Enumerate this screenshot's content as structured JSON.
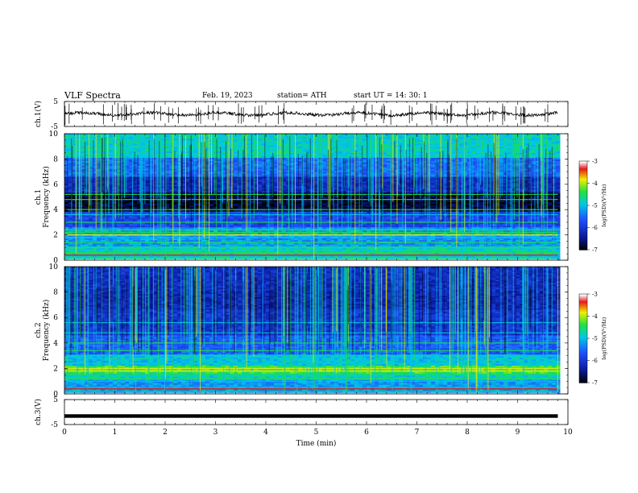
{
  "header": {
    "title": "VLF  Spectra",
    "date": "Feb. 19, 2023",
    "station": "station= ATH",
    "start": "start  UT  =    14: 30: 1"
  },
  "chart_data": [
    {
      "type": "line",
      "name": "ch1-waveform",
      "ylabel": "ch.1(V)",
      "yticks": [
        "5",
        "-5"
      ],
      "ylim": [
        -5,
        5
      ],
      "xlim": [
        0,
        10
      ],
      "baseline": 0
    },
    {
      "type": "heatmap",
      "name": "ch1-spectrogram",
      "ylabel_top": "ch.1",
      "ylabel": "Frequency (kHz)",
      "yticks": [
        "0",
        "2",
        "4",
        "6",
        "8",
        "10"
      ],
      "ylim": [
        0,
        10
      ],
      "xlim": [
        0,
        9.8
      ],
      "colorbar": {
        "label": "log(PSD)(V²/Hz)",
        "ticks": [
          "-3",
          "-4",
          "-5",
          "-6",
          "-7"
        ],
        "range": [
          -7,
          -3
        ]
      }
    },
    {
      "type": "heatmap",
      "name": "ch2-spectrogram",
      "ylabel_top": "ch.2",
      "ylabel": "Frequency (kHz)",
      "yticks": [
        "0",
        "2",
        "4",
        "6",
        "8",
        "10"
      ],
      "ylim": [
        0,
        10
      ],
      "xlim": [
        0,
        9.8
      ],
      "colorbar": {
        "label": "log(PSD)(V²/Hz)",
        "ticks": [
          "-3",
          "-4",
          "-5",
          "-6",
          "-7"
        ],
        "range": [
          -7,
          -3
        ]
      }
    },
    {
      "type": "line",
      "name": "ch3-waveform",
      "ylabel": "ch.3(V)",
      "yticks": [
        "5",
        "-5"
      ],
      "ylim": [
        -5,
        5
      ],
      "xlim": [
        0,
        10
      ],
      "baseline": -1.6
    }
  ],
  "xaxis": {
    "label": "Time  (min)",
    "ticks": [
      "0",
      "1",
      "2",
      "3",
      "4",
      "5",
      "6",
      "7",
      "8",
      "9",
      "10"
    ]
  },
  "colors": {
    "deep": "#000000",
    "low": "#0a1a9a",
    "mid": "#1f52ff",
    "cyan": "#00c8e6",
    "green": "#20e040",
    "yellow": "#f0f000",
    "red": "#e81818",
    "white": "#ffffff"
  }
}
